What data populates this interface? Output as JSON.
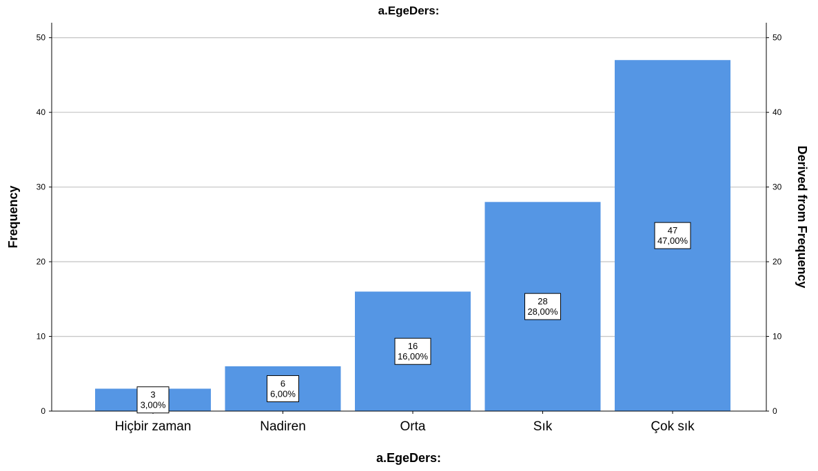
{
  "chart_data": {
    "type": "bar",
    "title": "a.EgeDers:",
    "xlabel": "a.EgeDers:",
    "ylabel": "Frequency",
    "ylabel_right": "Derived from Frequency",
    "categories": [
      "Hiçbir zaman",
      "Nadiren",
      "Orta",
      "Sık",
      "Çok sık"
    ],
    "values": [
      3,
      6,
      16,
      28,
      47
    ],
    "data_labels": [
      {
        "count": "3",
        "percent": "3,00%"
      },
      {
        "count": "6",
        "percent": "6,00%"
      },
      {
        "count": "16",
        "percent": "16,00%"
      },
      {
        "count": "28",
        "percent": "28,00%"
      },
      {
        "count": "47",
        "percent": "47,00%"
      }
    ],
    "ylim": [
      0,
      52
    ],
    "yticks": [
      0,
      10,
      20,
      30,
      40,
      50
    ],
    "grid": true,
    "legend": "none",
    "bar_color": "#5596e4"
  }
}
